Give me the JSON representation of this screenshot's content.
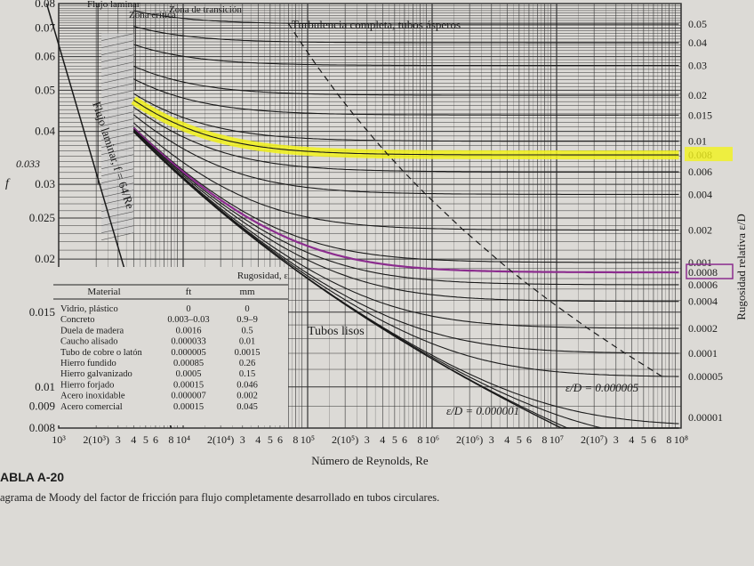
{
  "chart_data": {
    "type": "line",
    "xlabel": "Número de Reynolds, Re",
    "ylabel": "f",
    "right_label": "Rugosidad relativa ε/D",
    "x_scale": "log",
    "y_scale": "log",
    "xlim": [
      1000,
      100000000
    ],
    "ylim": [
      0.008,
      0.08
    ],
    "x_tick_labels": [
      "10³",
      "2(10³)",
      "3",
      "4",
      "5",
      "6",
      "8",
      "10⁴",
      "2(10⁴)",
      "3",
      "4",
      "5",
      "6",
      "8",
      "10⁵",
      "2(10⁵)",
      "3",
      "4",
      "5",
      "6",
      "8",
      "10⁶",
      "2(10⁶)",
      "3",
      "4",
      "5",
      "6",
      "8",
      "10⁷",
      "2(10⁷)",
      "3",
      "4",
      "5",
      "6",
      "8",
      "10⁸"
    ],
    "y_tick_labels": [
      "0.08",
      "0.07",
      "0.06",
      "0.05",
      "0.04",
      "0.03",
      "0.025",
      "0.02",
      "0.015",
      "0.01",
      "0.009",
      "0.008"
    ],
    "right_tick_labels": [
      "0.05",
      "0.04",
      "0.03",
      "0.02",
      "0.015",
      "0.01",
      "0.008",
      "0.006",
      "0.004",
      "0.002",
      "0.001",
      "0.0008",
      "0.0006",
      "0.0004",
      "0.0002",
      "0.0001",
      "0.00005",
      "0.00001"
    ],
    "roughness_curves": [
      0.05,
      0.04,
      0.03,
      0.02,
      0.015,
      0.01,
      0.008,
      0.006,
      0.004,
      0.002,
      0.001,
      0.0008,
      0.0006,
      0.0004,
      0.0002,
      0.0001,
      5e-05,
      1e-05,
      5e-06,
      1e-06
    ],
    "highlighted_yellow": 0.008,
    "highlighted_purple": 0.0008,
    "annotations": {
      "laminar_zone": "Flujo laminar",
      "critical_zone": "Zona crítica",
      "transition_zone": "Zona de transición",
      "complete_turbulence": "Turbulencia completa, tubos ásperos",
      "laminar_flow": "Flujo laminar, f = 64/Re",
      "smooth_pipes": "Tubos lisos",
      "ed_5e6": "ε/D = 0.000005",
      "ed_1e6": "ε/D = 0.000001"
    },
    "handwritten_note": "0.033"
  },
  "table": {
    "title": "Rugosidad, ε",
    "headers": [
      "Material",
      "ft",
      "mm"
    ],
    "rows": [
      [
        "Vidrio, plástico",
        "0",
        "0"
      ],
      [
        "Concreto",
        "0.003–0.03",
        "0.9–9"
      ],
      [
        "Duela de madera",
        "0.0016",
        "0.5"
      ],
      [
        "Caucho alisado",
        "0.000033",
        "0.01"
      ],
      [
        "Tubo de cobre o latón",
        "0.000005",
        "0.0015"
      ],
      [
        "Hierro fundido",
        "0.00085",
        "0.26"
      ],
      [
        "Hierro galvanizado",
        "0.0005",
        "0.15"
      ],
      [
        "Hierro forjado",
        "0.00015",
        "0.046"
      ],
      [
        "Acero inoxidable",
        "0.000007",
        "0.002"
      ],
      [
        "Acero comercial",
        "0.00015",
        "0.045"
      ]
    ]
  },
  "caption": {
    "title": "ABLA A-20",
    "body": "agrama de Moody del factor de fricción para flujo completamente desarrollado en tubos circulares."
  },
  "colors": {
    "highlight_yellow": "#f2f21a",
    "highlight_purple": "#8b2c8e"
  }
}
